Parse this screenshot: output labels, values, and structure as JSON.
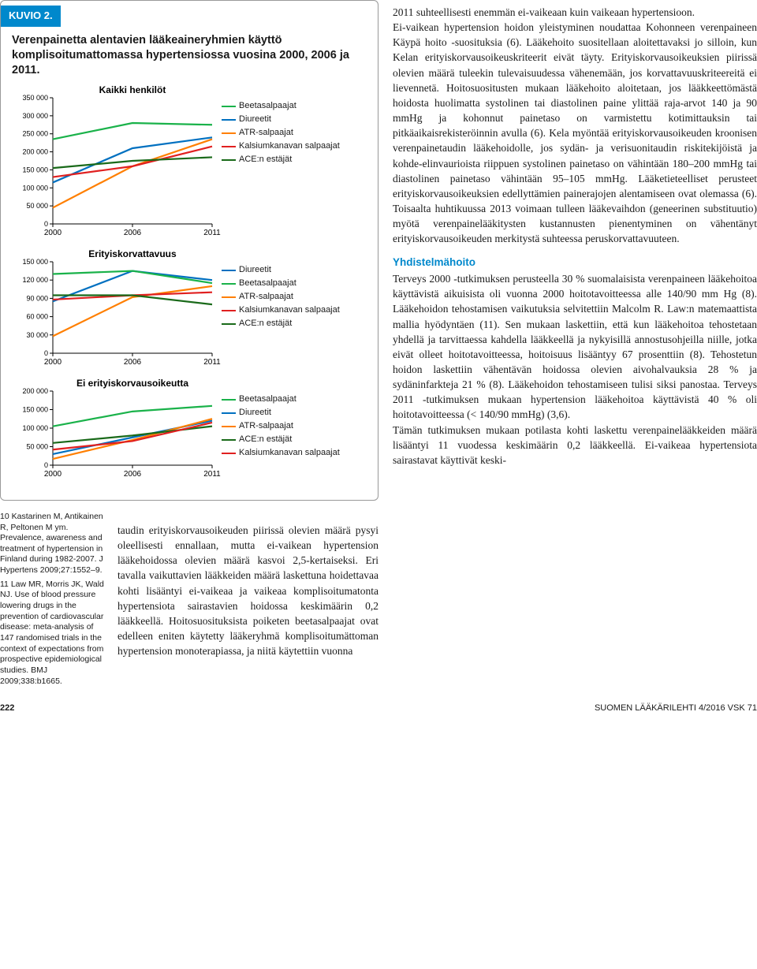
{
  "figure": {
    "header": "KUVIO 2.",
    "title": "Verenpainetta alentavien lääkeaineryhmien käyttö komplisoitumattomassa hypertensiossa vuosina 2000, 2006 ja 2011.",
    "panels": [
      {
        "subtitle": "Kaikki henkilöt",
        "ylim": [
          0,
          350000
        ],
        "ytick_step": 50000,
        "yticks": [
          "0",
          "50 000",
          "100 000",
          "150 000",
          "200 000",
          "250 000",
          "300 000",
          "350 000"
        ],
        "xticks": [
          "2000",
          "2006",
          "2011"
        ],
        "series": [
          {
            "label": "Beetasalpaajat",
            "color": "#1ab24a",
            "values": [
              235000,
              280000,
              275000
            ]
          },
          {
            "label": "Diureetit",
            "color": "#0070c0",
            "values": [
              115000,
              210000,
              240000
            ]
          },
          {
            "label": "ATR-salpaajat",
            "color": "#ff7f00",
            "values": [
              45000,
              160000,
              235000
            ]
          },
          {
            "label": "Kalsiumkanavan salpaajat",
            "color": "#e02020",
            "values": [
              130000,
              160000,
              215000
            ]
          },
          {
            "label": "ACE:n estäjät",
            "color": "#1a6a1a",
            "values": [
              155000,
              175000,
              185000
            ]
          }
        ],
        "legend_order": [
          "Beetasalpaajat",
          "Diureetit",
          "ATR-salpaajat",
          "Kalsiumkanavan salpaajat",
          "ACE:n estäjät"
        ]
      },
      {
        "subtitle": "Erityiskorvattavuus",
        "ylim": [
          0,
          150000
        ],
        "ytick_step": 30000,
        "yticks": [
          "0",
          "30 000",
          "60 000",
          "90 000",
          "120 000",
          "150 000"
        ],
        "xticks": [
          "2000",
          "2006",
          "2011"
        ],
        "series": [
          {
            "label": "Diureetit",
            "color": "#0070c0",
            "values": [
              85000,
              135000,
              120000
            ]
          },
          {
            "label": "Beetasalpaajat",
            "color": "#1ab24a",
            "values": [
              130000,
              135000,
              115000
            ]
          },
          {
            "label": "ATR-salpaajat",
            "color": "#ff7f00",
            "values": [
              28000,
              92000,
              110000
            ]
          },
          {
            "label": "Kalsiumkanavan salpaajat",
            "color": "#e02020",
            "values": [
              88000,
              95000,
              100000
            ]
          },
          {
            "label": "ACE:n estäjät",
            "color": "#1a6a1a",
            "values": [
              95000,
              95000,
              80000
            ]
          }
        ],
        "legend_order": [
          "Diureetit",
          "Beetasalpaajat",
          "ATR-salpaajat",
          "Kalsiumkanavan salpaajat",
          "ACE:n estäjät"
        ]
      },
      {
        "subtitle": "Ei erityiskorvausoikeutta",
        "ylim": [
          0,
          200000
        ],
        "ytick_step": 50000,
        "yticks": [
          "0",
          "50 000",
          "100 000",
          "150 000",
          "200 000"
        ],
        "xticks": [
          "2000",
          "2006",
          "2011"
        ],
        "series": [
          {
            "label": "Beetasalpaajat",
            "color": "#1ab24a",
            "values": [
              105000,
              145000,
              160000
            ]
          },
          {
            "label": "Diureetit",
            "color": "#0070c0",
            "values": [
              30000,
              75000,
              120000
            ]
          },
          {
            "label": "ATR-salpaajat",
            "color": "#ff7f00",
            "values": [
              17000,
              68000,
              125000
            ]
          },
          {
            "label": "ACE:n estäjät",
            "color": "#1a6a1a",
            "values": [
              60000,
              80000,
              105000
            ]
          },
          {
            "label": "Kalsiumkanavan salpaajat",
            "color": "#e02020",
            "values": [
              42000,
              65000,
              115000
            ]
          }
        ],
        "legend_order": [
          "Beetasalpaajat",
          "Diureetit",
          "ATR-salpaajat",
          "ACE:n estäjät",
          "Kalsiumkanavan salpaajat"
        ]
      }
    ]
  },
  "references": [
    {
      "n": "10",
      "text": "Kastarinen M, Antikainen R, Peltonen M ym. Prevalence, awareness and treatment of hypertension in Finland during 1982-2007. J Hypertens 2009;27:1552–9."
    },
    {
      "n": "11",
      "text": "Law MR, Morris JK, Wald NJ. Use of blood pressure lowering drugs in the prevention of cardiovascular disease: meta-analysis of 147 randomised trials in the context of expectations from prospective epidemiological studies. BMJ 2009;338:b1665."
    }
  ],
  "left_bottom_paragraph": "taudin erityiskorvausoikeuden piirissä olevien määrä pysyi oleellisesti ennallaan, mutta ei-vaikean hypertension lääkehoidossa olevien määrä kasvoi 2,5-kertaiseksi. Eri tavalla vaikuttavien lääkkeiden määrä laskettuna hoidettavaa kohti lisääntyi ei-vaikeaa ja vaikeaa komplisoitumatonta hypertensiota sairastavien hoidossa keskimäärin 0,2 lääkkeellä. Hoitosuosituksista poiketen beetasalpaajat ovat edelleen eniten käytetty lääkeryhmä komplisoitumättoman hypertension monoterapiassa, ja niitä käytettiin vuonna",
  "right_paragraphs": [
    "2011 suhteellisesti enemmän ei-vaikeaan kuin vaikeaan hypertensioon.",
    "Ei-vaikean hypertension hoidon yleistyminen noudattaa Kohonneen verenpaineen Käypä hoito -suosituksia (6). Lääkehoito suositellaan aloitettavaksi jo silloin, kun Kelan erityiskorvausoikeuskriteerit eivät täyty. Erityiskorvausoikeuksien piirissä olevien määrä tuleekin tulevaisuudessa vähenemään, jos korvattavuuskriteereitä ei lievennetä. Hoitosuositusten mukaan lääkehoito aloitetaan, jos lääkkeettömästä hoidosta huolimatta systolinen tai diastolinen paine ylittää raja-arvot 140 ja 90 mmHg ja kohonnut painetaso on varmistettu kotimittauksin tai pitkäaikaisrekisteröinnin avulla (6). Kela myöntää erityiskorvausoikeuden kroonisen verenpainetaudin lääkehoidolle, jos sydän- ja verisuonitaudin riskitekijöistä ja kohde-elinvaurioista riippuen systolinen painetaso on vähintään 180–200 mmHg tai diastolinen painetaso vähintään 95–105 mmHg. Lääketieteelliset perusteet erityiskorvausoikeuksien edellyttämien painerajojen alentamiseen ovat olemassa (6). Toisaalta huhtikuussa 2013 voimaan tulleen lääkevaihdon (geneerinen substituutio) myötä verenpainelääkitysten kustannusten pienentyminen on vähentänyt erityiskorvausoikeuden merkitystä suhteessa peruskorvattavuuteen."
  ],
  "right_subhead": "Yhdistelmähoito",
  "right_paragraphs2": [
    "Terveys 2000 -tutkimuksen perusteella 30 % suomalaisista verenpaineen lääkehoitoa käyttävistä aikuisista oli vuonna 2000 hoitotavoitteessa alle 140/90 mm Hg (8). Lääkehoidon tehostamisen vaikutuksia selvitettiin Malcolm R. Law:n matemaattista mallia hyödyntäen (11). Sen mukaan laskettiin, että kun lääkehoitoa tehostetaan yhdellä ja tarvittaessa kahdella lääkkeellä ja nykyisillä annostusohjeilla niille, jotka eivät olleet hoitotavoitteessa, hoitoisuus lisääntyy 67 prosenttiin (8). Tehostetun hoidon laskettiin vähentävän hoidossa olevien aivohalvauksia 28 % ja sydäninfarkteja 21 % (8). Lääkehoidon tehostamiseen tulisi siksi panostaa. Terveys 2011 -tutkimuksen mukaan hypertension lääkehoitoa käyttävistä 40 % oli hoitotavoitteessa (< 140/90 mmHg) (3,6).",
    "Tämän tutkimuksen mukaan potilasta kohti laskettu verenpainelääkkeiden määrä lisääntyi 11 vuodessa keskimäärin 0,2 lääkkeellä. Ei-vaikeaa hypertensiota sairastavat käyttivät keski-"
  ],
  "footer": {
    "page": "222",
    "journal": "SUOMEN LÄÄKÄRILEHTI 4/2016 VSK 71"
  }
}
